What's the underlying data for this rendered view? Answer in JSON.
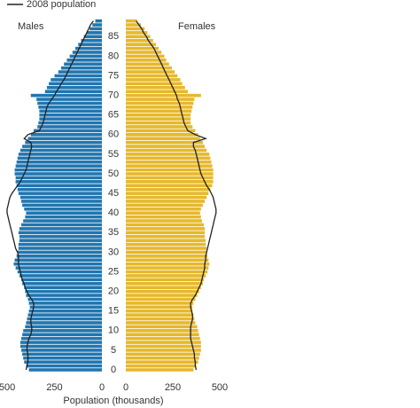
{
  "chart_data": {
    "type": "pyramid",
    "legend": "2008 population",
    "left_label": "Males",
    "right_label": "Females",
    "xlabel": "Population (thousands)",
    "categories": [
      0,
      null,
      null,
      null,
      null,
      5,
      null,
      null,
      null,
      null,
      10,
      null,
      null,
      null,
      null,
      15,
      null,
      null,
      null,
      null,
      20,
      null,
      null,
      null,
      null,
      25,
      null,
      null,
      null,
      null,
      30,
      null,
      null,
      null,
      null,
      35,
      null,
      null,
      null,
      null,
      40,
      null,
      null,
      null,
      null,
      45,
      null,
      null,
      null,
      null,
      50,
      null,
      null,
      null,
      null,
      55,
      null,
      null,
      null,
      null,
      60,
      null,
      null,
      null,
      null,
      65,
      null,
      null,
      null,
      null,
      70,
      null,
      null,
      null,
      null,
      75,
      null,
      null,
      null,
      null,
      80,
      null,
      null,
      null,
      null,
      85,
      null,
      null,
      null,
      null
    ],
    "xlim": [
      0,
      500
    ],
    "xticks": [
      0,
      250,
      500
    ],
    "series": [
      {
        "name": "Males",
        "color": "#2176b0",
        "side": "left",
        "values": [
          385,
          400,
          410,
          415,
          420,
          425,
          430,
          430,
          425,
          420,
          415,
          405,
          400,
          395,
          390,
          385,
          380,
          385,
          390,
          400,
          405,
          410,
          420,
          425,
          435,
          445,
          455,
          465,
          460,
          450,
          445,
          440,
          440,
          435,
          435,
          440,
          435,
          425,
          415,
          405,
          400,
          410,
          420,
          425,
          430,
          440,
          445,
          450,
          455,
          455,
          460,
          460,
          455,
          450,
          445,
          440,
          430,
          420,
          405,
          390,
          375,
          360,
          340,
          335,
          330,
          330,
          330,
          335,
          340,
          345,
          375,
          300,
          290,
          280,
          270,
          250,
          230,
          215,
          200,
          185,
          170,
          155,
          140,
          125,
          110,
          95,
          80,
          65,
          50,
          35
        ],
        "line_2008": [
          400,
          395,
          390,
          390,
          390,
          395,
          395,
          390,
          385,
          375,
          370,
          370,
          375,
          375,
          370,
          365,
          360,
          360,
          370,
          385,
          395,
          405,
          410,
          420,
          425,
          430,
          435,
          440,
          440,
          440,
          445,
          455,
          460,
          465,
          470,
          475,
          480,
          485,
          490,
          495,
          500,
          500,
          495,
          490,
          485,
          475,
          460,
          445,
          430,
          420,
          410,
          400,
          395,
          390,
          385,
          380,
          375,
          370,
          375,
          410,
          390,
          330,
          320,
          310,
          305,
          300,
          295,
          290,
          280,
          265,
          250,
          240,
          225,
          215,
          200,
          190,
          180,
          170,
          160,
          150,
          140,
          130,
          120,
          110,
          100,
          90,
          80,
          70,
          60,
          45
        ]
      },
      {
        "name": "Females",
        "color": "#e6b82b",
        "side": "right",
        "values": [
          360,
          375,
          385,
          390,
          395,
          400,
          400,
          400,
          395,
          390,
          385,
          380,
          370,
          365,
          360,
          355,
          355,
          360,
          370,
          380,
          390,
          400,
          410,
          415,
          425,
          435,
          440,
          445,
          440,
          435,
          430,
          430,
          425,
          425,
          420,
          420,
          420,
          415,
          405,
          400,
          395,
          400,
          410,
          420,
          430,
          440,
          450,
          460,
          465,
          465,
          465,
          465,
          460,
          455,
          450,
          445,
          430,
          420,
          410,
          395,
          385,
          370,
          355,
          345,
          345,
          345,
          350,
          355,
          360,
          365,
          400,
          330,
          315,
          300,
          290,
          275,
          260,
          245,
          230,
          215,
          205,
          190,
          175,
          160,
          145,
          130,
          115,
          100,
          80,
          60
        ],
        "line_2008": [
          375,
          370,
          370,
          365,
          365,
          360,
          355,
          350,
          345,
          345,
          345,
          345,
          350,
          355,
          355,
          350,
          345,
          345,
          355,
          370,
          380,
          390,
          400,
          405,
          410,
          415,
          420,
          420,
          425,
          425,
          430,
          435,
          440,
          445,
          450,
          455,
          460,
          465,
          470,
          475,
          480,
          480,
          475,
          470,
          465,
          455,
          445,
          430,
          420,
          410,
          400,
          395,
          390,
          385,
          380,
          375,
          370,
          360,
          360,
          425,
          370,
          330,
          320,
          310,
          305,
          300,
          295,
          290,
          285,
          275,
          270,
          260,
          250,
          240,
          230,
          220,
          210,
          200,
          190,
          180,
          170,
          160,
          150,
          135,
          120,
          110,
          95,
          85,
          70,
          55
        ]
      }
    ],
    "line_color": "#222222"
  }
}
